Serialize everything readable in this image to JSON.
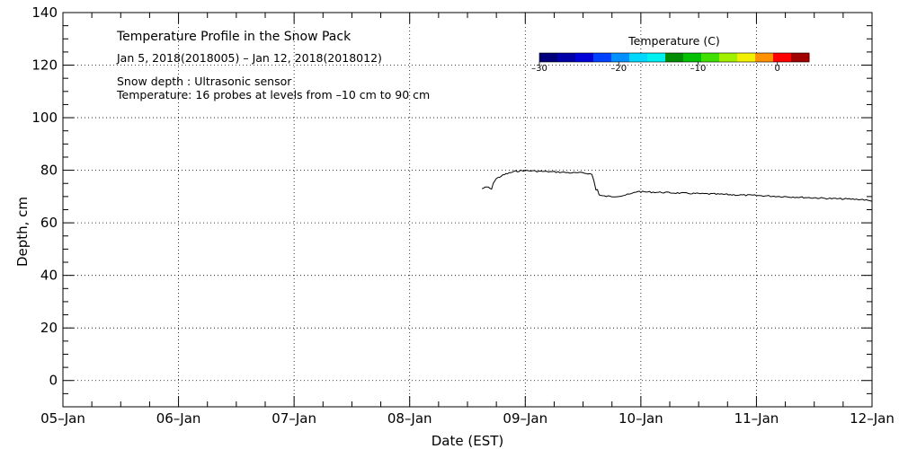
{
  "chart_data": {
    "type": "line",
    "title": "Temperature Profile in the Snow Pack",
    "subtitle": "Jan  5, 2018(2018005) – Jan 12, 2018(2018012)",
    "annotations": [
      "Snow depth : Ultrasonic sensor",
      "Temperature: 16 probes at levels from –10 cm to 90 cm"
    ],
    "xlabel": "Date (EST)",
    "ylabel": "Depth, cm",
    "xlim": [
      "2018-01-05",
      "2018-01-12"
    ],
    "ylim": [
      -10,
      140
    ],
    "x_ticks": [
      {
        "x": "2018-01-05",
        "label": "05–Jan"
      },
      {
        "x": "2018-01-06",
        "label": "06–Jan"
      },
      {
        "x": "2018-01-07",
        "label": "07–Jan"
      },
      {
        "x": "2018-01-08",
        "label": "08–Jan"
      },
      {
        "x": "2018-01-09",
        "label": "09–Jan"
      },
      {
        "x": "2018-01-10",
        "label": "10–Jan"
      },
      {
        "x": "2018-01-11",
        "label": "11–Jan"
      },
      {
        "x": "2018-01-12",
        "label": "12–Jan"
      }
    ],
    "y_ticks": [
      0,
      20,
      40,
      60,
      80,
      100,
      120,
      140
    ],
    "grid": true,
    "series": [
      {
        "color": "#000000",
        "points": [
          [
            "2018-01-08 15:00",
            73.0
          ],
          [
            "2018-01-08 15:40",
            73.4
          ],
          [
            "2018-01-08 16:20",
            73.6
          ],
          [
            "2018-01-08 17:00",
            72.6
          ],
          [
            "2018-01-08 17:20",
            75.2
          ],
          [
            "2018-01-08 18:00",
            76.8
          ],
          [
            "2018-01-08 19:00",
            77.8
          ],
          [
            "2018-01-08 20:00",
            78.6
          ],
          [
            "2018-01-08 21:00",
            79.1
          ],
          [
            "2018-01-08 22:00",
            79.6
          ],
          [
            "2018-01-08 23:00",
            79.8
          ],
          [
            "2018-01-09 00:00",
            79.9
          ],
          [
            "2018-01-09 02:00",
            79.7
          ],
          [
            "2018-01-09 04:00",
            79.5
          ],
          [
            "2018-01-09 06:00",
            79.4
          ],
          [
            "2018-01-09 08:00",
            79.2
          ],
          [
            "2018-01-09 10:00",
            79.0
          ],
          [
            "2018-01-09 12:00",
            79.0
          ],
          [
            "2018-01-09 13:00",
            78.8
          ],
          [
            "2018-01-09 13:50",
            78.4
          ],
          [
            "2018-01-09 14:15",
            76.0
          ],
          [
            "2018-01-09 14:40",
            72.5
          ],
          [
            "2018-01-09 15:00",
            72.8
          ],
          [
            "2018-01-09 15:20",
            70.6
          ],
          [
            "2018-01-09 16:00",
            70.2
          ],
          [
            "2018-01-09 18:00",
            70.0
          ],
          [
            "2018-01-09 20:00",
            70.3
          ],
          [
            "2018-01-09 22:00",
            71.0
          ],
          [
            "2018-01-09 23:20",
            72.0
          ],
          [
            "2018-01-10 00:00",
            71.8
          ],
          [
            "2018-01-10 04:00",
            71.6
          ],
          [
            "2018-01-10 08:00",
            71.3
          ],
          [
            "2018-01-10 12:00",
            71.1
          ],
          [
            "2018-01-10 16:00",
            70.9
          ],
          [
            "2018-01-10 20:00",
            70.6
          ],
          [
            "2018-01-11 00:00",
            70.4
          ],
          [
            "2018-01-11 04:00",
            70.1
          ],
          [
            "2018-01-11 08:00",
            69.8
          ],
          [
            "2018-01-11 12:00",
            69.5
          ],
          [
            "2018-01-11 16:00",
            69.2
          ],
          [
            "2018-01-11 20:00",
            69.0
          ],
          [
            "2018-01-11 22:00",
            68.9
          ],
          [
            "2018-01-12 00:00",
            68.2
          ]
        ]
      }
    ],
    "colorbar": {
      "title": "Temperature (C)",
      "ticks": [
        {
          "value": -30,
          "label": "–30"
        },
        {
          "value": -20,
          "label": "–20"
        },
        {
          "value": -10,
          "label": "–10"
        },
        {
          "value": 0,
          "label": "0"
        }
      ],
      "range": [
        -30,
        4
      ],
      "colors": [
        "#00007a",
        "#0000a8",
        "#0000d8",
        "#0040ff",
        "#0090ff",
        "#00d8ff",
        "#00f0f0",
        "#008c00",
        "#00c000",
        "#40e000",
        "#a0f000",
        "#f0f000",
        "#ff9000",
        "#ff0000",
        "#a00000"
      ]
    }
  }
}
